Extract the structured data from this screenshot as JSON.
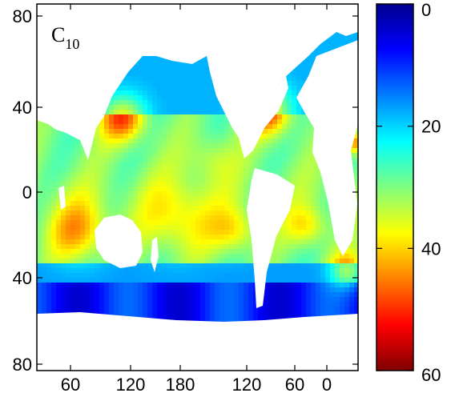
{
  "chart_data": {
    "type": "heatmap",
    "title": "",
    "panel_label": {
      "base": "C",
      "subscript": "10"
    },
    "xlabel": "",
    "ylabel": "",
    "x_tick_labels": [
      "60",
      "120",
      "180",
      "120",
      "60",
      "0"
    ],
    "y_tick_labels": [
      "80",
      "40",
      "0",
      "40",
      "80"
    ],
    "colorbar": {
      "tick_labels": [
        "0",
        "20",
        "40",
        "60"
      ],
      "range": [
        0,
        60
      ],
      "orientation": "vertical",
      "reversed": true,
      "colormap": "jet"
    },
    "grid": false
  }
}
